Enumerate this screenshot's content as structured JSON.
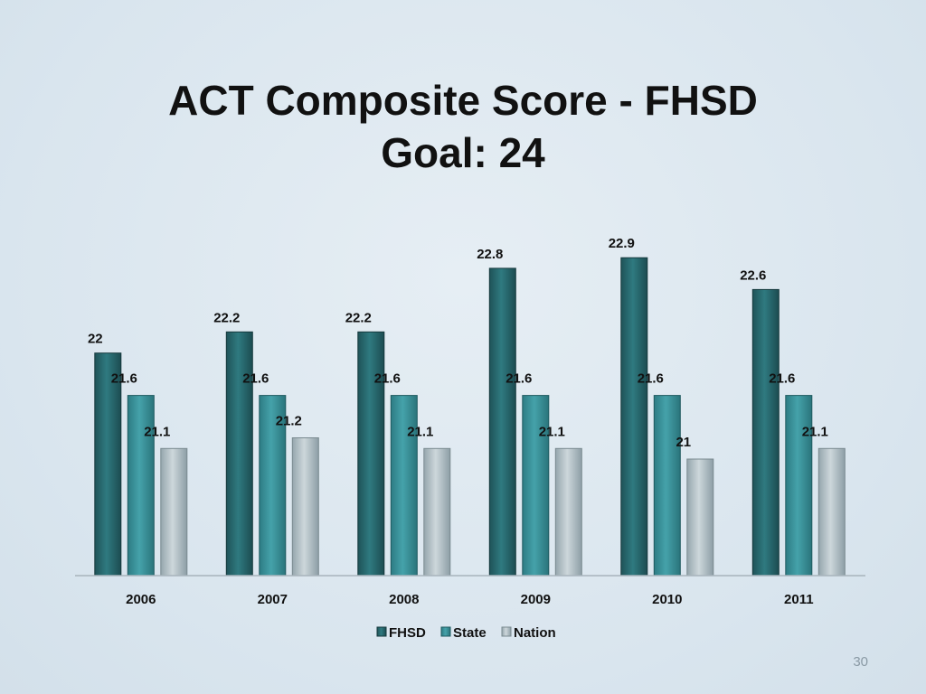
{
  "slide": {
    "title_line1": "ACT Composite Score - FHSD",
    "title_line2": "Goal:  24",
    "page_number": "30"
  },
  "chart_data": {
    "type": "bar",
    "title": "ACT Composite Score - FHSD",
    "subtitle": "Goal:  24",
    "categories": [
      "2006",
      "2007",
      "2008",
      "2009",
      "2010",
      "2011"
    ],
    "series": [
      {
        "name": "FHSD",
        "values": [
          22,
          22.2,
          22.2,
          22.8,
          22.9,
          22.6
        ],
        "labels": [
          "22",
          "22.2",
          "22.2",
          "22.8",
          "22.9",
          "22.6"
        ],
        "color": "#2a6b72"
      },
      {
        "name": "State",
        "values": [
          21.6,
          21.6,
          21.6,
          21.6,
          21.6,
          21.6
        ],
        "labels": [
          "21.6",
          "21.6",
          "21.6",
          "21.6",
          "21.6",
          "21.6"
        ],
        "color": "#3a9098"
      },
      {
        "name": "Nation",
        "values": [
          21.1,
          21.2,
          21.1,
          21.1,
          21,
          21.1
        ],
        "labels": [
          "21.1",
          "21.2",
          "21.1",
          "21.1",
          "21",
          "21.1"
        ],
        "color": "#b4c2c8"
      }
    ],
    "ylim": [
      19.9,
      23.2
    ],
    "grid": false,
    "legend_position": "bottom"
  }
}
